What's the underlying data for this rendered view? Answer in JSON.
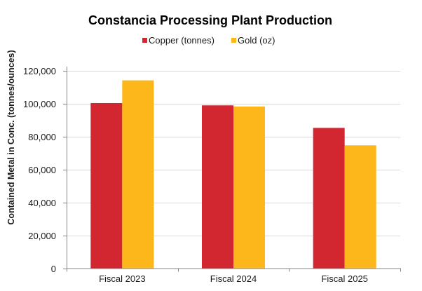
{
  "chart_data": {
    "type": "bar",
    "title": "Constancia Processing Plant Production",
    "xlabel": "",
    "ylabel": "Contained Metal in Conc. (tonnes/ounces)",
    "categories": [
      "Fiscal 2023",
      "Fiscal 2024",
      "Fiscal 2025"
    ],
    "series": [
      {
        "name": "Copper (tonnes)",
        "color": "#D22630",
        "values": [
          100400,
          99000,
          85300
        ]
      },
      {
        "name": "Gold (oz)",
        "color": "#FDB71A",
        "values": [
          114200,
          98300,
          74700
        ]
      }
    ],
    "ylim": [
      0,
      120000
    ],
    "yticks": [
      0,
      20000,
      40000,
      60000,
      80000,
      100000,
      120000
    ],
    "ytick_labels": [
      "0",
      "20,000",
      "40,000",
      "60,000",
      "80,000",
      "100,000",
      "120,000"
    ],
    "grid": true,
    "legend_position": "top-center"
  }
}
